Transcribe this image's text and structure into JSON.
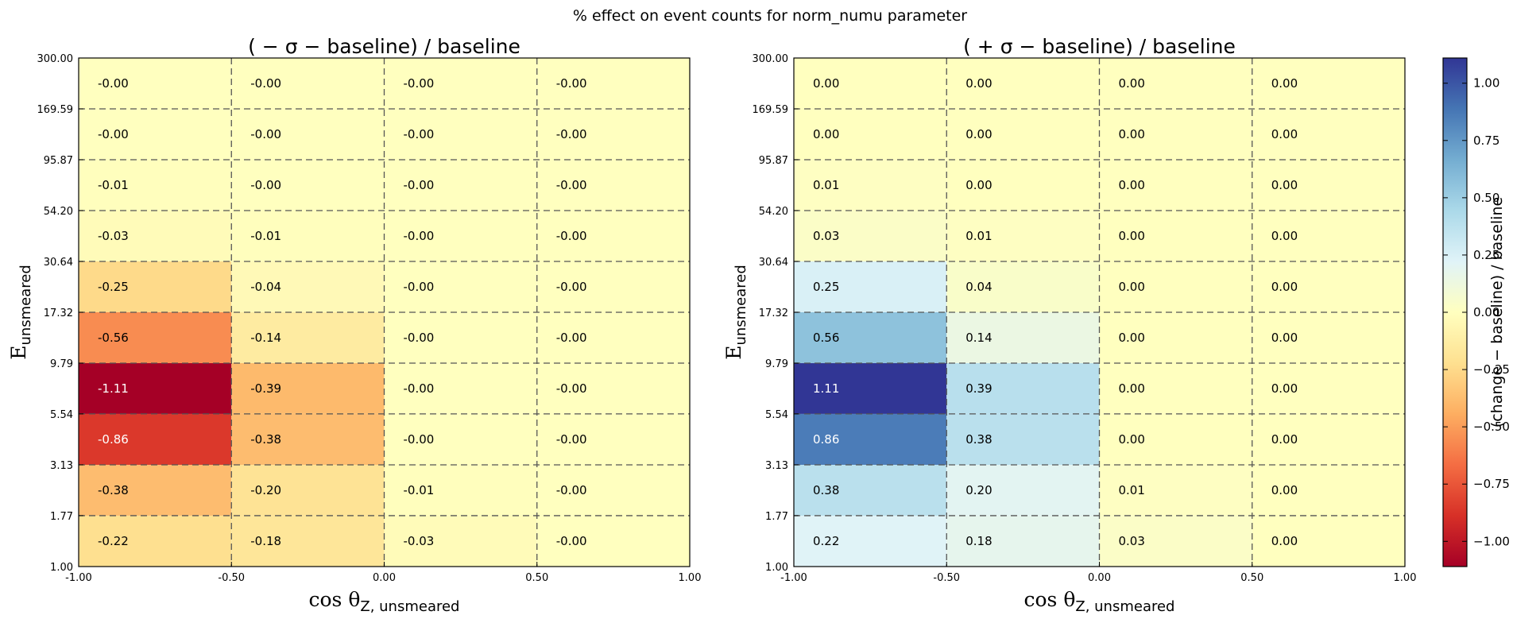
{
  "suptitle": "% effect on event counts for norm_numu parameter",
  "chart_data": {
    "type": "heatmap",
    "x_edges": [
      -1.0,
      -0.5,
      0.0,
      0.5,
      1.0
    ],
    "x_tick_labels": [
      "-1.00",
      "-0.50",
      "0.00",
      "0.50",
      "1.00"
    ],
    "y_edges": [
      1.0,
      1.77,
      3.13,
      5.54,
      9.79,
      17.32,
      30.64,
      54.2,
      95.87,
      169.59,
      300.0
    ],
    "y_tick_labels": [
      "1.00",
      "1.77",
      "3.13",
      "5.54",
      "9.79",
      "17.32",
      "30.64",
      "54.20",
      "95.87",
      "169.59",
      "300.00"
    ],
    "y_scale": "log",
    "grid": true,
    "colorbar": {
      "label": "(change − baseline) / baseline",
      "range": [
        -1.11,
        1.11
      ],
      "ticks": [
        -1.0,
        -0.75,
        -0.5,
        -0.25,
        0.0,
        0.25,
        0.5,
        0.75,
        1.0
      ],
      "tick_labels": [
        "−1.00",
        "−0.75",
        "−0.50",
        "−0.25",
        "0.00",
        "0.25",
        "0.50",
        "0.75",
        "1.00"
      ],
      "colormap": "RdYlBu",
      "colormap_colors": [
        "#a50026",
        "#d73027",
        "#f46d43",
        "#fdae61",
        "#fee090",
        "#ffffbf",
        "#e0f3f8",
        "#abd9e9",
        "#74add1",
        "#4575b4",
        "#313695"
      ]
    },
    "panels": [
      {
        "title": "( − σ − baseline) / baseline",
        "xlabel_main": "cos θ",
        "xlabel_sub": "Z, unsmeared",
        "ylabel_main": "E",
        "ylabel_sub": "unsmeared",
        "values": [
          [
            -0.22,
            -0.18,
            -0.03,
            -0.0
          ],
          [
            -0.38,
            -0.2,
            -0.01,
            -0.0
          ],
          [
            -0.86,
            -0.38,
            -0.0,
            -0.0
          ],
          [
            -1.11,
            -0.39,
            -0.0,
            -0.0
          ],
          [
            -0.56,
            -0.14,
            -0.0,
            -0.0
          ],
          [
            -0.25,
            -0.04,
            -0.0,
            -0.0
          ],
          [
            -0.03,
            -0.01,
            -0.0,
            -0.0
          ],
          [
            -0.01,
            -0.0,
            -0.0,
            -0.0
          ],
          [
            -0.0,
            -0.0,
            -0.0,
            -0.0
          ],
          [
            -0.0,
            -0.0,
            -0.0,
            -0.0
          ]
        ],
        "labels": [
          [
            "-0.22",
            "-0.18",
            "-0.03",
            "-0.00"
          ],
          [
            "-0.38",
            "-0.20",
            "-0.01",
            "-0.00"
          ],
          [
            "-0.86",
            "-0.38",
            "-0.00",
            "-0.00"
          ],
          [
            "-1.11",
            "-0.39",
            "-0.00",
            "-0.00"
          ],
          [
            "-0.56",
            "-0.14",
            "-0.00",
            "-0.00"
          ],
          [
            "-0.25",
            "-0.04",
            "-0.00",
            "-0.00"
          ],
          [
            "-0.03",
            "-0.01",
            "-0.00",
            "-0.00"
          ],
          [
            "-0.01",
            "-0.00",
            "-0.00",
            "-0.00"
          ],
          [
            "-0.00",
            "-0.00",
            "-0.00",
            "-0.00"
          ],
          [
            "-0.00",
            "-0.00",
            "-0.00",
            "-0.00"
          ]
        ]
      },
      {
        "title": "( + σ − baseline) / baseline",
        "xlabel_main": "cos θ",
        "xlabel_sub": "Z, unsmeared",
        "ylabel_main": "E",
        "ylabel_sub": "unsmeared",
        "values": [
          [
            0.22,
            0.18,
            0.03,
            0.0
          ],
          [
            0.38,
            0.2,
            0.01,
            0.0
          ],
          [
            0.86,
            0.38,
            0.0,
            0.0
          ],
          [
            1.11,
            0.39,
            0.0,
            0.0
          ],
          [
            0.56,
            0.14,
            0.0,
            0.0
          ],
          [
            0.25,
            0.04,
            0.0,
            0.0
          ],
          [
            0.03,
            0.01,
            0.0,
            0.0
          ],
          [
            0.01,
            0.0,
            0.0,
            0.0
          ],
          [
            0.0,
            0.0,
            0.0,
            0.0
          ],
          [
            0.0,
            0.0,
            0.0,
            0.0
          ]
        ],
        "labels": [
          [
            "0.22",
            "0.18",
            "0.03",
            "0.00"
          ],
          [
            "0.38",
            "0.20",
            "0.01",
            "0.00"
          ],
          [
            "0.86",
            "0.38",
            "0.00",
            "0.00"
          ],
          [
            "1.11",
            "0.39",
            "0.00",
            "0.00"
          ],
          [
            "0.56",
            "0.14",
            "0.00",
            "0.00"
          ],
          [
            "0.25",
            "0.04",
            "0.00",
            "0.00"
          ],
          [
            "0.03",
            "0.01",
            "0.00",
            "0.00"
          ],
          [
            "0.01",
            "0.00",
            "0.00",
            "0.00"
          ],
          [
            "0.00",
            "0.00",
            "0.00",
            "0.00"
          ],
          [
            "0.00",
            "0.00",
            "0.00",
            "0.00"
          ]
        ]
      }
    ]
  }
}
